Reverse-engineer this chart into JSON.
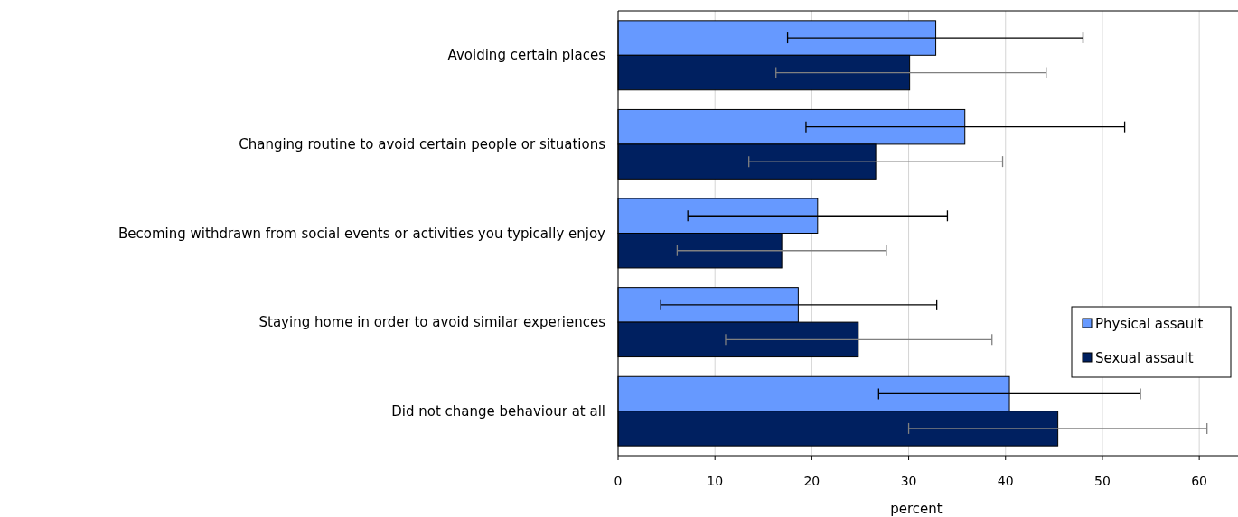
{
  "chart_data": {
    "type": "bar",
    "orientation": "horizontal",
    "xlabel": "percent",
    "categories": [
      "Avoiding certain places",
      "Changing routine to avoid certain people or situations",
      "Becoming withdrawn from social events or activities you typically enjoy",
      "Staying home in order to avoid similar experiences",
      "Did not change behaviour at all"
    ],
    "series": [
      {
        "name": "Physical assault",
        "color": "#6699ff",
        "values": [
          32.8,
          35.8,
          20.6,
          18.6,
          40.4
        ],
        "errors": [
          [
            17.5,
            48.0
          ],
          [
            19.4,
            52.3
          ],
          [
            7.2,
            34.0
          ],
          [
            4.4,
            32.9
          ],
          [
            26.9,
            53.9
          ]
        ]
      },
      {
        "name": "Sexual assault",
        "color": "#002060",
        "values": [
          30.1,
          26.6,
          16.9,
          24.8,
          45.4
        ],
        "errors": [
          [
            16.3,
            44.2
          ],
          [
            13.5,
            39.7
          ],
          [
            6.1,
            27.7
          ],
          [
            11.1,
            38.6
          ],
          [
            30.0,
            60.8
          ]
        ]
      }
    ],
    "xlim": [
      0,
      64
    ],
    "xticks": [
      0,
      10,
      20,
      30,
      40,
      50,
      60
    ],
    "grid": "x",
    "legend": "right"
  }
}
